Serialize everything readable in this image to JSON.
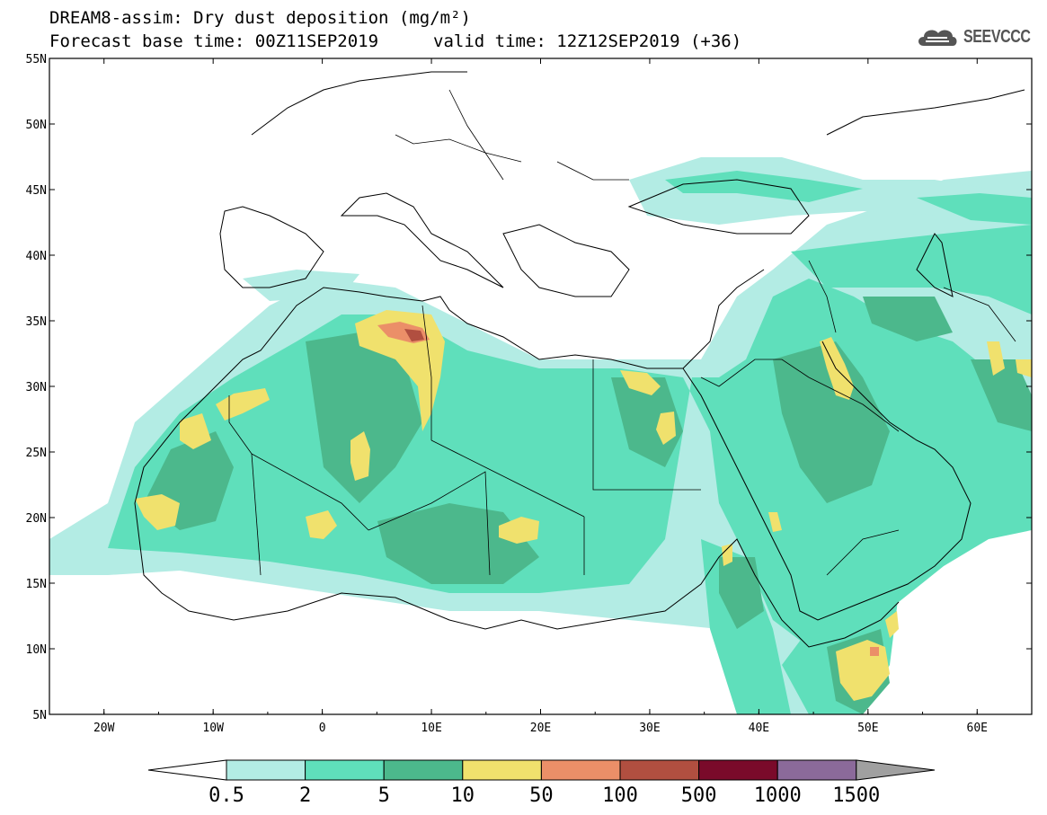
{
  "header": {
    "title_line1": "DREAM8-assim: Dry dust deposition (mg/m²)",
    "title_line2": "Forecast base time: 00Z11SEP2019",
    "valid_time": "valid time: 12Z12SEP2019 (+36)"
  },
  "logo": {
    "text": "SEEVCCC",
    "icon": "cloud-logo-icon"
  },
  "map": {
    "region": "North Africa, Europe and Middle East",
    "lon_range": [
      -25,
      65
    ],
    "lat_range": [
      5,
      55
    ],
    "lat_labels": [
      "55N",
      "50N",
      "45N",
      "40N",
      "35N",
      "30N",
      "25N",
      "20N",
      "15N",
      "10N",
      "5N"
    ],
    "lon_labels": [
      "20W",
      "10W",
      "0",
      "10E",
      "20E",
      "30E",
      "40E",
      "50E",
      "60E"
    ]
  },
  "colorbar": {
    "labels": [
      "0.5",
      "2",
      "5",
      "10",
      "50",
      "100",
      "500",
      "1000",
      "1500"
    ],
    "colors": [
      "#b3ece4",
      "#5fdfbb",
      "#4cb88c",
      "#f0e16d",
      "#eb8f68",
      "#b14f40",
      "#7a0a2a",
      "#8b6a9a"
    ],
    "under_color": "#ffffff",
    "over_color": "#a0a0a0"
  }
}
